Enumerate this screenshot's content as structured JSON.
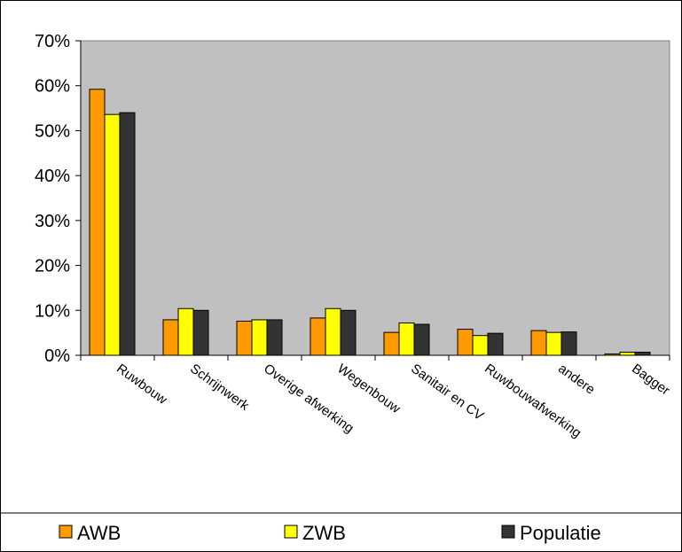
{
  "chart_data": {
    "type": "bar",
    "categories": [
      "Ruwbouw",
      "Schrijnwerk",
      "Overige afwerking",
      "Wegenbouw",
      "Sanitair en CV",
      "Ruwbouwafwerking",
      "andere",
      "Bagger"
    ],
    "series": [
      {
        "name": "AWB",
        "color": "#ff9900",
        "values": [
          59.2,
          7.9,
          7.6,
          8.3,
          5.1,
          5.8,
          5.5,
          0.3
        ]
      },
      {
        "name": "ZWB",
        "color": "#ffff00",
        "values": [
          53.6,
          10.4,
          7.9,
          10.4,
          7.2,
          4.4,
          5.1,
          0.7
        ]
      },
      {
        "name": "Populatie",
        "color": "#333333",
        "values": [
          54.0,
          10.0,
          7.9,
          10.0,
          6.9,
          4.9,
          5.2,
          0.7
        ]
      }
    ],
    "ylim": [
      0,
      70
    ],
    "yticks": [
      "0%",
      "10%",
      "20%",
      "30%",
      "40%",
      "50%",
      "60%",
      "70%"
    ],
    "plot_background": "#c0c0c0",
    "grid": false,
    "legend_position": "bottom"
  }
}
